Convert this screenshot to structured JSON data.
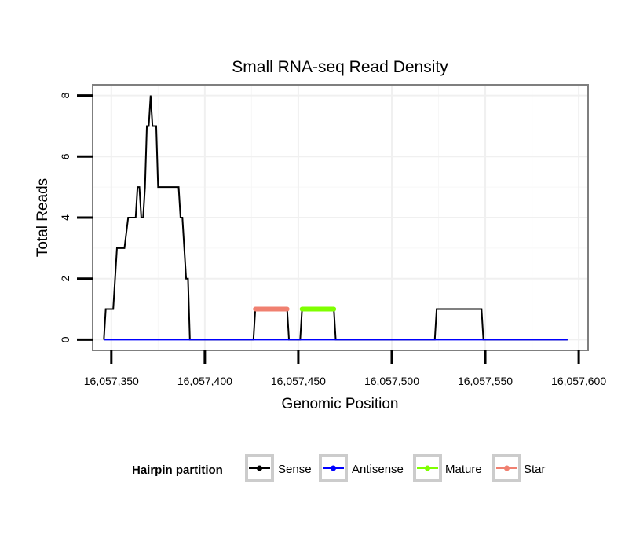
{
  "chart_data": {
    "type": "line",
    "title": "Small RNA-seq Read Density",
    "xlabel": "Genomic Position",
    "ylabel": "Total Reads",
    "xlim": [
      16057340,
      16057605
    ],
    "ylim": [
      -0.35,
      8.35
    ],
    "x_ticks": [
      16057350,
      16057400,
      16057450,
      16057500,
      16057550,
      16057600
    ],
    "x_tick_labels": [
      "16,057,350",
      "16,057,400",
      "16,057,450",
      "16,057,500",
      "16,057,550",
      "16,057,600"
    ],
    "y_ticks": [
      0,
      2,
      4,
      6,
      8
    ],
    "y_tick_labels": [
      "0",
      "2",
      "4",
      "6",
      "8"
    ],
    "grid": true,
    "legend_position": "bottom",
    "legend_title": "Hairpin partition",
    "series": [
      {
        "name": "Sense",
        "color": "#000000",
        "x": [
          16057346,
          16057347,
          16057350,
          16057351,
          16057353,
          16057356,
          16057357,
          16057359,
          16057362,
          16057363,
          16057364,
          16057365,
          16057366,
          16057367,
          16057368,
          16057369,
          16057370,
          16057371,
          16057372,
          16057373,
          16057374,
          16057375,
          16057376,
          16057377,
          16057378,
          16057380,
          16057383,
          16057384,
          16057386,
          16057387,
          16057388,
          16057390,
          16057391,
          16057392,
          16057393,
          16057426,
          16057427,
          16057431,
          16057444,
          16057445,
          16057446,
          16057450,
          16057451,
          16057452,
          16057468,
          16057469,
          16057470,
          16057523,
          16057524,
          16057548,
          16057549,
          16057594
        ],
        "y": [
          0,
          1,
          1,
          1,
          3,
          3,
          3,
          4,
          4,
          4,
          5,
          5,
          4,
          4,
          5,
          7,
          7,
          8,
          7,
          7,
          7,
          5,
          5,
          5,
          5,
          5,
          5,
          5,
          5,
          4,
          4,
          2,
          2,
          0,
          0,
          0,
          1,
          1,
          1,
          0,
          0,
          0,
          0,
          1,
          1,
          1,
          0,
          0,
          1,
          1,
          0,
          0
        ]
      },
      {
        "name": "Antisense",
        "color": "#0000ff",
        "x": [
          16057346,
          16057594
        ],
        "y": [
          0,
          0
        ]
      },
      {
        "name": "Mature",
        "color": "#7fff00",
        "x": [
          16057452,
          16057469
        ],
        "y": [
          1,
          1
        ]
      },
      {
        "name": "Star",
        "color": "#f08070",
        "x": [
          16057427,
          16057444
        ],
        "y": [
          1,
          1
        ]
      }
    ]
  }
}
